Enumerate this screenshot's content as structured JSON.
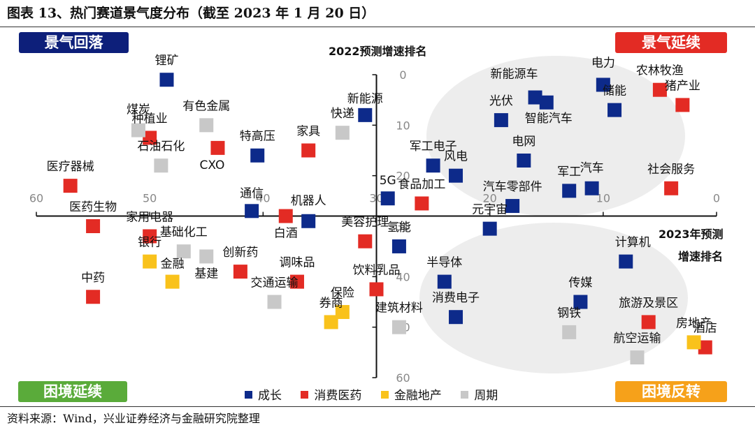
{
  "figure": {
    "title": "图表 13、热门赛道景气度分布（截至 2023 年 1 月 20 日）",
    "source": "资料来源：Wind，兴业证券经济与金融研究院整理"
  },
  "quadrants": {
    "top_left": "景气回落",
    "top_right": "景气延续",
    "bottom_left": "困境延续",
    "bottom_right": "困境反转"
  },
  "colors": {
    "成长": "#0d2a8a",
    "消费医药": "#e32b24",
    "金融地产": "#f9c21b",
    "周期": "#c8c8c8",
    "highlight_ellipse": "#ededed"
  },
  "chart_data": {
    "type": "scatter",
    "xlabel_line1": "2023年预测",
    "xlabel_line2": "增速排名",
    "ylabel": "2022预测增速排名",
    "x_reversed": true,
    "xlim": [
      60,
      0
    ],
    "y_reversed": true,
    "ylim": [
      0,
      60
    ],
    "x_ticks": [
      "60",
      "50",
      "40",
      "30",
      "20",
      "10",
      "0"
    ],
    "y_ticks": [
      "0",
      "10",
      "20",
      "30",
      "40",
      "50",
      "60"
    ],
    "legend": [
      "成长",
      "消费医药",
      "金融地产",
      "周期"
    ],
    "legend_position": "bottom",
    "points": [
      {
        "name": "锂矿",
        "x": 48.5,
        "y": 1,
        "cat": "成长"
      },
      {
        "name": "新能源",
        "x": 31,
        "y": 8,
        "cat": "成长"
      },
      {
        "name": "新能源车",
        "x": 16,
        "y": 4.5,
        "cat": "成长"
      },
      {
        "name": "光伏",
        "x": 19,
        "y": 9,
        "cat": "成长"
      },
      {
        "name": "智能汽车",
        "x": 15,
        "y": 5.5,
        "cat": "成长"
      },
      {
        "name": "电力",
        "x": 10,
        "y": 2,
        "cat": "成长"
      },
      {
        "name": "储能",
        "x": 9,
        "y": 7,
        "cat": "成长"
      },
      {
        "name": "电网",
        "x": 17,
        "y": 17,
        "cat": "成长"
      },
      {
        "name": "特高压",
        "x": 40.5,
        "y": 16,
        "cat": "成长"
      },
      {
        "name": "军工电子",
        "x": 25,
        "y": 18,
        "cat": "成长"
      },
      {
        "name": "风电",
        "x": 23,
        "y": 20,
        "cat": "成长"
      },
      {
        "name": "军工",
        "x": 13,
        "y": 23,
        "cat": "成长"
      },
      {
        "name": "汽车",
        "x": 11,
        "y": 22.5,
        "cat": "成长"
      },
      {
        "name": "5G",
        "x": 29,
        "y": 24.5,
        "cat": "成长"
      },
      {
        "name": "汽车零部件",
        "x": 18,
        "y": 26,
        "cat": "成长"
      },
      {
        "name": "通信",
        "x": 41,
        "y": 27,
        "cat": "成长"
      },
      {
        "name": "机器人",
        "x": 36,
        "y": 29,
        "cat": "成长"
      },
      {
        "name": "元宇宙",
        "x": 20,
        "y": 30.5,
        "cat": "成长"
      },
      {
        "name": "氢能",
        "x": 28,
        "y": 34,
        "cat": "成长"
      },
      {
        "name": "计算机",
        "x": 8,
        "y": 37,
        "cat": "成长"
      },
      {
        "name": "半导体",
        "x": 24,
        "y": 41,
        "cat": "成长"
      },
      {
        "name": "传媒",
        "x": 12,
        "y": 45,
        "cat": "成长"
      },
      {
        "name": "消费电子",
        "x": 23,
        "y": 48,
        "cat": "成长"
      },
      {
        "name": "农林牧渔",
        "x": 5,
        "y": 3,
        "cat": "消费医药"
      },
      {
        "name": "猪产业",
        "x": 3,
        "y": 6,
        "cat": "消费医药"
      },
      {
        "name": "种植业",
        "x": 50,
        "y": 12.5,
        "cat": "消费医药"
      },
      {
        "name": "CXO",
        "x": 44,
        "y": 14.5,
        "cat": "消费医药"
      },
      {
        "name": "家具",
        "x": 36,
        "y": 15,
        "cat": "消费医药"
      },
      {
        "name": "医疗器械",
        "x": 57,
        "y": 22,
        "cat": "消费医药"
      },
      {
        "name": "社会服务",
        "x": 4,
        "y": 22.5,
        "cat": "消费医药"
      },
      {
        "name": "食品加工",
        "x": 26,
        "y": 25.5,
        "cat": "消费医药"
      },
      {
        "name": "白酒",
        "x": 38,
        "y": 28,
        "cat": "消费医药"
      },
      {
        "name": "医药生物",
        "x": 55,
        "y": 30,
        "cat": "消费医药"
      },
      {
        "name": "家用电器",
        "x": 50,
        "y": 32,
        "cat": "消费医药"
      },
      {
        "name": "美容护理",
        "x": 31,
        "y": 33,
        "cat": "消费医药"
      },
      {
        "name": "创新药",
        "x": 42,
        "y": 39,
        "cat": "消费医药"
      },
      {
        "name": "调味品",
        "x": 37,
        "y": 41,
        "cat": "消费医药"
      },
      {
        "name": "饮料乳品",
        "x": 30,
        "y": 42.5,
        "cat": "消费医药"
      },
      {
        "name": "中药",
        "x": 55,
        "y": 44,
        "cat": "消费医药"
      },
      {
        "name": "旅游及景区",
        "x": 6,
        "y": 49,
        "cat": "消费医药"
      },
      {
        "name": "酒店",
        "x": 1,
        "y": 54,
        "cat": "消费医药"
      },
      {
        "name": "银行",
        "x": 50,
        "y": 37,
        "cat": "金融地产"
      },
      {
        "name": "金融",
        "x": 48,
        "y": 41,
        "cat": "金融地产"
      },
      {
        "name": "保险",
        "x": 33,
        "y": 47,
        "cat": "金融地产"
      },
      {
        "name": "券商",
        "x": 34,
        "y": 49,
        "cat": "金融地产"
      },
      {
        "name": "房地产",
        "x": 2,
        "y": 53,
        "cat": "金融地产"
      },
      {
        "name": "煤炭",
        "x": 51,
        "y": 11,
        "cat": "周期"
      },
      {
        "name": "有色金属",
        "x": 45,
        "y": 10,
        "cat": "周期"
      },
      {
        "name": "石油石化",
        "x": 49,
        "y": 18,
        "cat": "周期"
      },
      {
        "name": "快递",
        "x": 33,
        "y": 11.5,
        "cat": "周期"
      },
      {
        "name": "基础化工",
        "x": 47,
        "y": 35,
        "cat": "周期"
      },
      {
        "name": "基建",
        "x": 45,
        "y": 36,
        "cat": "周期"
      },
      {
        "name": "交通运输",
        "x": 39,
        "y": 45,
        "cat": "周期"
      },
      {
        "name": "建筑材料",
        "x": 28,
        "y": 50,
        "cat": "周期"
      },
      {
        "name": "钢铁",
        "x": 13,
        "y": 51,
        "cat": "周期"
      },
      {
        "name": "航空运输",
        "x": 7,
        "y": 56,
        "cat": "周期"
      }
    ]
  }
}
